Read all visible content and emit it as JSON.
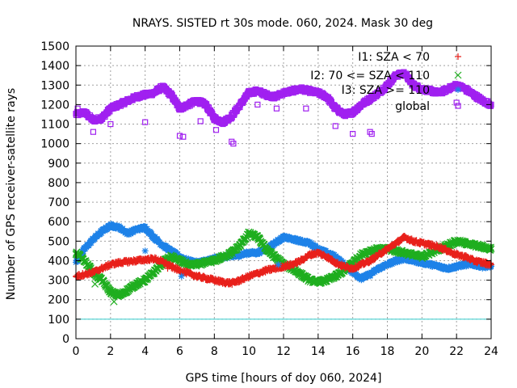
{
  "chart_data": {
    "type": "scatter",
    "title": "NRAYS. SISTED rt 30s mode. 060, 2024. Mask 30 deg",
    "xlabel": "GPS time [hours of doy 060, 2024]",
    "ylabel": "Number of GPS receiver-satellite rays",
    "xlim": [
      0,
      24
    ],
    "ylim": [
      0,
      1500
    ],
    "xticks": [
      "0",
      "2",
      "4",
      "6",
      "8",
      "10",
      "12",
      "14",
      "16",
      "18",
      "20",
      "22",
      "24"
    ],
    "yticks": [
      "0",
      "100",
      "200",
      "300",
      "400",
      "500",
      "600",
      "700",
      "800",
      "900",
      "1000",
      "1100",
      "1200",
      "1300",
      "1400",
      "1500"
    ],
    "grid": true,
    "legend_position": "top-right",
    "reference_line": {
      "y": 100,
      "color": "#33cccc"
    },
    "series": [
      {
        "name": "I1: SZA < 70",
        "marker": "plus",
        "color": "#e8201b",
        "x": [
          0,
          0.5,
          1,
          1.5,
          2,
          2.5,
          3,
          3.5,
          4,
          4.5,
          5,
          5.5,
          6,
          6.5,
          7,
          7.5,
          8,
          8.5,
          9,
          9.5,
          10,
          10.5,
          11,
          11.5,
          12,
          12.5,
          13,
          13.5,
          14,
          14.5,
          15,
          15.5,
          16,
          16.5,
          17,
          17.5,
          18,
          18.5,
          19,
          19.5,
          20,
          20.5,
          21,
          21.5,
          22,
          22.5,
          23,
          23.5,
          24
        ],
        "values": [
          320,
          330,
          340,
          360,
          380,
          390,
          395,
          400,
          405,
          410,
          395,
          370,
          350,
          335,
          320,
          310,
          300,
          290,
          285,
          300,
          320,
          335,
          350,
          360,
          370,
          380,
          400,
          430,
          440,
          420,
          390,
          370,
          360,
          380,
          400,
          430,
          460,
          490,
          520,
          500,
          490,
          480,
          470,
          450,
          430,
          420,
          400,
          390,
          380
        ]
      },
      {
        "name": "I2: 70 <= SZA < 110",
        "marker": "cross",
        "color": "#1fae1f",
        "x": [
          0,
          0.5,
          1,
          1.5,
          2,
          2.5,
          3,
          3.5,
          4,
          4.5,
          5,
          5.5,
          6,
          6.5,
          7,
          7.5,
          8,
          8.5,
          9,
          9.5,
          10,
          10.5,
          11,
          11.5,
          12,
          12.5,
          13,
          13.5,
          14,
          14.5,
          15,
          15.5,
          16,
          16.5,
          17,
          17.5,
          18,
          18.5,
          19,
          19.5,
          20,
          20.5,
          21,
          21.5,
          22,
          22.5,
          23,
          23.5,
          24
        ],
        "values": [
          440,
          400,
          340,
          300,
          240,
          220,
          250,
          280,
          300,
          340,
          390,
          420,
          400,
          380,
          380,
          390,
          400,
          420,
          440,
          480,
          540,
          520,
          460,
          420,
          380,
          360,
          330,
          300,
          290,
          300,
          320,
          350,
          390,
          430,
          450,
          460,
          460,
          450,
          440,
          430,
          420,
          440,
          460,
          480,
          500,
          490,
          480,
          470,
          460
        ]
      },
      {
        "name": "I3: SZA >= 110",
        "marker": "star",
        "color": "#1e82e8",
        "x": [
          0,
          0.5,
          1,
          1.5,
          2,
          2.5,
          3,
          3.5,
          4,
          4.5,
          5,
          5.5,
          6,
          6.5,
          7,
          7.5,
          8,
          8.5,
          9,
          9.5,
          10,
          10.5,
          11,
          11.5,
          12,
          12.5,
          13,
          13.5,
          14,
          14.5,
          15,
          15.5,
          16,
          16.5,
          17,
          17.5,
          18,
          18.5,
          19,
          19.5,
          20,
          20.5,
          21,
          21.5,
          22,
          22.5,
          23,
          23.5,
          24
        ],
        "values": [
          390,
          460,
          510,
          550,
          580,
          570,
          540,
          560,
          570,
          520,
          480,
          450,
          420,
          400,
          390,
          400,
          410,
          420,
          420,
          430,
          440,
          440,
          460,
          490,
          520,
          510,
          500,
          490,
          460,
          440,
          420,
          380,
          340,
          310,
          330,
          360,
          380,
          400,
          410,
          400,
          390,
          380,
          370,
          360,
          370,
          380,
          380,
          370,
          370
        ]
      },
      {
        "name": "global",
        "marker": "square",
        "color": "#a020f0",
        "x": [
          0,
          0.5,
          1,
          1.5,
          2,
          2.5,
          3,
          3.5,
          4,
          4.5,
          5,
          5.5,
          6,
          6.5,
          7,
          7.5,
          8,
          8.5,
          9,
          9.5,
          10,
          10.5,
          11,
          11.5,
          12,
          12.5,
          13,
          13.5,
          14,
          14.5,
          15,
          15.5,
          16,
          16.5,
          17,
          17.5,
          18,
          18.5,
          19,
          19.5,
          20,
          20.5,
          21,
          21.5,
          22,
          22.5,
          23,
          23.5,
          24
        ],
        "values": [
          1150,
          1160,
          1120,
          1130,
          1180,
          1200,
          1220,
          1240,
          1250,
          1260,
          1290,
          1250,
          1180,
          1200,
          1220,
          1200,
          1130,
          1110,
          1140,
          1200,
          1260,
          1270,
          1250,
          1240,
          1260,
          1270,
          1280,
          1270,
          1260,
          1240,
          1180,
          1150,
          1160,
          1200,
          1230,
          1260,
          1300,
          1350,
          1360,
          1300,
          1280,
          1270,
          1260,
          1280,
          1300,
          1280,
          1250,
          1220,
          1200
        ]
      }
    ],
    "outliers": [
      {
        "series": "global",
        "x": [
          0.1,
          1,
          2,
          4,
          6,
          6.2,
          7.2,
          8.1,
          9,
          9.1,
          10.5,
          11.6,
          13.3,
          15,
          16,
          17,
          17.1,
          19.3,
          22
        ],
        "values": [
          1180,
          1060,
          1100,
          1110,
          1040,
          1035,
          1115,
          1070,
          1010,
          1000,
          1200,
          1180,
          1180,
          1090,
          1050,
          1060,
          1050,
          1320,
          1210
        ]
      },
      {
        "series": "I2: 70 <= SZA < 110",
        "x": [
          1.1,
          2.2
        ],
        "values": [
          280,
          190
        ]
      },
      {
        "series": "I1: SZA < 70",
        "x": [
          5.3,
          7.9,
          13.6
        ],
        "values": [
          360,
          310,
          430
        ]
      },
      {
        "series": "I3: SZA >= 110",
        "x": [
          4,
          6.1,
          11.7
        ],
        "values": [
          450,
          320,
          380
        ]
      }
    ]
  }
}
